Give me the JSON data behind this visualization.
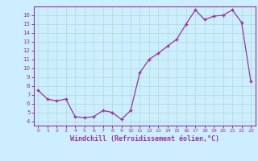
{
  "x": [
    0,
    1,
    2,
    3,
    4,
    5,
    6,
    7,
    8,
    9,
    10,
    11,
    12,
    13,
    14,
    15,
    16,
    17,
    18,
    19,
    20,
    21,
    22,
    23
  ],
  "y": [
    7.5,
    6.5,
    6.3,
    6.5,
    4.5,
    4.4,
    4.5,
    5.2,
    5.0,
    4.2,
    5.2,
    9.5,
    11.0,
    11.7,
    12.5,
    13.3,
    15.0,
    16.6,
    15.5,
    15.9,
    16.0,
    16.6,
    15.2,
    8.5
  ],
  "line_color": "#993399",
  "marker": "+",
  "bg_color": "#cceeff",
  "grid_color": "#aaddcc",
  "xlabel": "Windchill (Refroidissement éolien,°C)",
  "ylim": [
    3.5,
    17.0
  ],
  "xlim": [
    -0.5,
    23.5
  ],
  "yticks": [
    4,
    5,
    6,
    7,
    8,
    9,
    10,
    11,
    12,
    13,
    14,
    15,
    16
  ],
  "xticks": [
    0,
    1,
    2,
    3,
    4,
    5,
    6,
    7,
    8,
    9,
    10,
    11,
    12,
    13,
    14,
    15,
    16,
    17,
    18,
    19,
    20,
    21,
    22,
    23
  ],
  "label_color": "#993399",
  "tick_color": "#993399",
  "axis_color": "#993399",
  "spine_color": "#993399"
}
